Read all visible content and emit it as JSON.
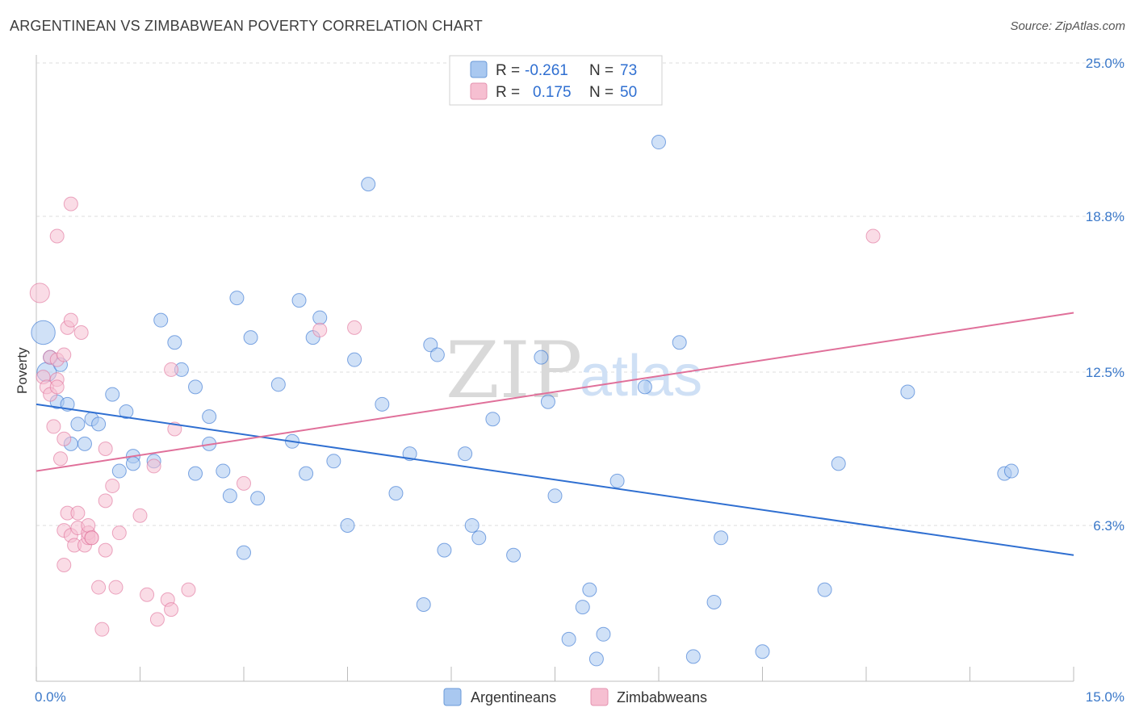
{
  "header": {
    "title": "ARGENTINEAN VS ZIMBABWEAN POVERTY CORRELATION CHART",
    "source": "Source: ZipAtlas.com"
  },
  "colors": {
    "blue": "#2f6fd1",
    "blue_fill": "#a9c8f0",
    "pink": "#e0709a",
    "pink_fill": "#f6bfd1",
    "grid": "#dddddd",
    "label": "#3a78c9"
  },
  "legend_top": {
    "rows": [
      {
        "r_label": "R = ",
        "r_value": "-0.261",
        "n_label": "N = ",
        "n_value": "73",
        "series": "Argentineans"
      },
      {
        "r_label": "R = ",
        "r_value": "0.175",
        "n_label": "N = ",
        "n_value": "50",
        "series": "Zimbabweans"
      }
    ]
  },
  "watermark": {
    "zip": "ZIP",
    "atlas": "atlas"
  },
  "chart_data": {
    "type": "scatter",
    "title": "ARGENTINEAN VS ZIMBABWEAN POVERTY CORRELATION CHART",
    "xlabel": "",
    "ylabel": "Poverty",
    "xlim": [
      0,
      15
    ],
    "ylim": [
      0,
      25
    ],
    "x_tick_labels": [
      {
        "value": 0,
        "label": "0.0%"
      },
      {
        "value": 15,
        "label": "15.0%"
      }
    ],
    "y_tick_labels": [
      {
        "value": 6.3,
        "label": "6.3%"
      },
      {
        "value": 12.5,
        "label": "12.5%"
      },
      {
        "value": 18.8,
        "label": "18.8%"
      },
      {
        "value": 25.0,
        "label": "25.0%"
      }
    ],
    "legend": [
      "Argentineans",
      "Zimbabweans"
    ],
    "series": [
      {
        "name": "Argentineans",
        "r": -0.261,
        "n": 73,
        "trend": {
          "x": [
            0,
            15
          ],
          "y": [
            11.2,
            5.1
          ]
        },
        "points": [
          [
            0.1,
            14.1,
            3
          ],
          [
            0.15,
            12.5,
            2
          ],
          [
            0.2,
            13.1,
            1
          ],
          [
            0.3,
            11.3,
            1
          ],
          [
            0.45,
            11.2,
            1
          ],
          [
            0.5,
            9.6,
            1
          ],
          [
            0.6,
            10.4,
            1
          ],
          [
            0.7,
            9.6,
            1
          ],
          [
            0.8,
            10.6,
            1
          ],
          [
            0.9,
            10.4,
            1
          ],
          [
            1.1,
            11.6,
            1
          ],
          [
            1.2,
            8.5,
            1
          ],
          [
            1.3,
            10.9,
            1
          ],
          [
            1.4,
            9.1,
            1
          ],
          [
            1.4,
            8.8,
            1
          ],
          [
            1.7,
            8.9,
            1
          ],
          [
            1.8,
            14.6,
            1
          ],
          [
            2.0,
            13.7,
            1
          ],
          [
            2.1,
            12.6,
            1
          ],
          [
            2.3,
            11.9,
            1
          ],
          [
            2.3,
            8.4,
            1
          ],
          [
            2.5,
            9.6,
            1
          ],
          [
            2.5,
            10.7,
            1
          ],
          [
            2.7,
            8.5,
            1
          ],
          [
            2.8,
            7.5,
            1
          ],
          [
            2.9,
            15.5,
            1
          ],
          [
            3.0,
            5.2,
            1
          ],
          [
            3.1,
            13.9,
            1
          ],
          [
            3.2,
            7.4,
            1
          ],
          [
            3.5,
            12.0,
            1
          ],
          [
            3.7,
            9.7,
            1
          ],
          [
            3.8,
            15.4,
            1
          ],
          [
            3.9,
            8.4,
            1
          ],
          [
            4.0,
            13.9,
            1
          ],
          [
            4.1,
            14.7,
            1
          ],
          [
            4.3,
            8.9,
            1
          ],
          [
            4.5,
            6.3,
            1
          ],
          [
            4.6,
            13.0,
            1
          ],
          [
            4.8,
            20.1,
            1
          ],
          [
            5.0,
            11.2,
            1
          ],
          [
            5.2,
            7.6,
            1
          ],
          [
            5.4,
            9.2,
            1
          ],
          [
            5.6,
            3.1,
            1
          ],
          [
            5.7,
            13.6,
            1
          ],
          [
            5.8,
            13.2,
            1
          ],
          [
            5.9,
            5.3,
            1
          ],
          [
            6.2,
            9.2,
            1
          ],
          [
            6.3,
            6.3,
            1
          ],
          [
            6.4,
            5.8,
            1
          ],
          [
            6.6,
            10.6,
            1
          ],
          [
            6.9,
            5.1,
            1
          ],
          [
            7.3,
            13.1,
            1
          ],
          [
            7.4,
            11.3,
            1
          ],
          [
            7.5,
            7.5,
            1
          ],
          [
            7.7,
            1.7,
            1
          ],
          [
            7.9,
            3.0,
            1
          ],
          [
            8.0,
            3.7,
            1
          ],
          [
            8.1,
            0.9,
            1
          ],
          [
            8.2,
            1.9,
            1
          ],
          [
            8.4,
            8.1,
            1
          ],
          [
            8.8,
            11.9,
            1
          ],
          [
            9.0,
            21.8,
            1
          ],
          [
            9.3,
            13.7,
            1
          ],
          [
            9.5,
            1.0,
            1
          ],
          [
            9.8,
            3.2,
            1
          ],
          [
            9.9,
            5.8,
            1
          ],
          [
            10.5,
            1.2,
            1
          ],
          [
            11.4,
            3.7,
            1
          ],
          [
            11.6,
            8.8,
            1
          ],
          [
            12.6,
            11.7,
            1
          ],
          [
            14.0,
            8.4,
            1
          ],
          [
            14.1,
            8.5,
            1
          ],
          [
            0.35,
            12.8,
            1
          ]
        ]
      },
      {
        "name": "Zimbabweans",
        "r": 0.175,
        "n": 50,
        "trend": {
          "x": [
            0,
            15
          ],
          "y": [
            8.5,
            14.9
          ]
        },
        "points": [
          [
            0.05,
            15.7,
            2
          ],
          [
            0.1,
            12.3,
            1
          ],
          [
            0.15,
            11.9,
            1
          ],
          [
            0.2,
            11.6,
            1
          ],
          [
            0.2,
            13.1,
            1
          ],
          [
            0.25,
            10.3,
            1
          ],
          [
            0.3,
            12.2,
            1
          ],
          [
            0.3,
            11.9,
            1
          ],
          [
            0.3,
            13.0,
            1
          ],
          [
            0.35,
            9.0,
            1
          ],
          [
            0.3,
            18.0,
            1
          ],
          [
            0.4,
            9.8,
            1
          ],
          [
            0.4,
            13.2,
            1
          ],
          [
            0.4,
            6.1,
            1
          ],
          [
            0.4,
            4.7,
            1
          ],
          [
            0.45,
            6.8,
            1
          ],
          [
            0.45,
            14.3,
            1
          ],
          [
            0.5,
            14.6,
            1
          ],
          [
            0.5,
            19.3,
            1
          ],
          [
            0.5,
            5.9,
            1
          ],
          [
            0.55,
            5.5,
            1
          ],
          [
            0.6,
            6.2,
            1
          ],
          [
            0.6,
            6.8,
            1
          ],
          [
            0.65,
            14.1,
            1
          ],
          [
            0.7,
            5.5,
            1
          ],
          [
            0.75,
            5.8,
            1
          ],
          [
            0.75,
            6.0,
            1
          ],
          [
            0.75,
            6.3,
            1
          ],
          [
            0.8,
            5.8,
            1
          ],
          [
            0.8,
            5.8,
            1
          ],
          [
            0.9,
            3.8,
            1
          ],
          [
            0.95,
            2.1,
            1
          ],
          [
            1.0,
            7.3,
            1
          ],
          [
            1.0,
            5.3,
            1
          ],
          [
            1.0,
            9.4,
            1
          ],
          [
            1.1,
            7.9,
            1
          ],
          [
            1.15,
            3.8,
            1
          ],
          [
            1.2,
            6.0,
            1
          ],
          [
            1.5,
            6.7,
            1
          ],
          [
            1.6,
            3.5,
            1
          ],
          [
            1.7,
            8.7,
            1
          ],
          [
            1.75,
            2.5,
            1
          ],
          [
            1.9,
            3.3,
            1
          ],
          [
            1.95,
            2.9,
            1
          ],
          [
            1.95,
            12.6,
            1
          ],
          [
            2.0,
            10.2,
            1
          ],
          [
            2.2,
            3.7,
            1
          ],
          [
            3.0,
            8.0,
            1
          ],
          [
            4.1,
            14.2,
            1
          ],
          [
            4.6,
            14.3,
            1
          ],
          [
            12.1,
            18.0,
            1
          ]
        ]
      }
    ]
  },
  "bottom_legend": {
    "items": [
      {
        "label": "Argentineans"
      },
      {
        "label": "Zimbabweans"
      }
    ]
  }
}
